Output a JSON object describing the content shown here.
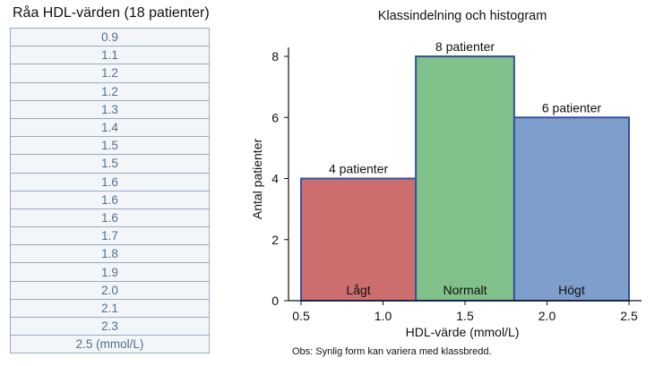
{
  "left_panel": {
    "title": "Råa HDL-värden (18 patienter)",
    "values": [
      "0.9",
      "1.1",
      "1.2",
      "1.2",
      "1.3",
      "1.4",
      "1.5",
      "1.5",
      "1.6",
      "1.6",
      "1.6",
      "1.7",
      "1.8",
      "1.9",
      "2.0",
      "2.1",
      "2.3",
      "2.5 (mmol/L)"
    ]
  },
  "chart_data": {
    "type": "bar",
    "title": "Klassindelning och histogram",
    "xlabel": "HDL-värde (mmol/L)",
    "ylabel": "Antal patienter",
    "xlim": [
      0.5,
      2.5
    ],
    "ylim": [
      0,
      8
    ],
    "xticks": [
      "0.5",
      "1.0",
      "1.5",
      "2.0",
      "2.5"
    ],
    "yticks": [
      "0",
      "2",
      "4",
      "6",
      "8"
    ],
    "bins": [
      {
        "start": 0.5,
        "end": 1.2,
        "count": 4,
        "label": "Lågt",
        "count_label": "4 patienter",
        "color": "#cd6e6e"
      },
      {
        "start": 1.2,
        "end": 1.8,
        "count": 8,
        "label": "Normalt",
        "count_label": "8 patienter",
        "color": "#80c08a"
      },
      {
        "start": 1.8,
        "end": 2.5,
        "count": 6,
        "label": "Högt",
        "count_label": "6 patienter",
        "color": "#7e9ecb"
      }
    ],
    "bar_edge_color": "#3651a0",
    "note": "Obs: Synlig form kan variera med klassbredd.",
    "grid": false
  }
}
